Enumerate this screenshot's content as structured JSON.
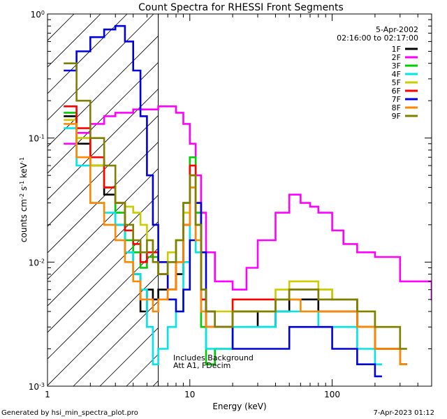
{
  "chart_data": {
    "type": "line",
    "title": "Count Spectra for RHESSI Front Segments",
    "xlabel": "Energy (keV)",
    "ylabel_main": "counts cm",
    "ylabel_exp1": "-2",
    "ylabel_mid": " s",
    "ylabel_exp2": "-1",
    "ylabel_mid2": " keV",
    "ylabel_exp3": "-1",
    "xscale": "log",
    "yscale": "log",
    "xlim": [
      1,
      500
    ],
    "ylim": [
      0.001,
      1
    ],
    "x_ticks": [
      {
        "value": 1,
        "label": "1"
      },
      {
        "value": 10,
        "label": "10"
      },
      {
        "value": 100,
        "label": "100"
      }
    ],
    "y_ticks": [
      {
        "value": 1,
        "base": "10",
        "exp": "0"
      },
      {
        "value": 0.1,
        "base": "10",
        "exp": "-1"
      },
      {
        "value": 0.01,
        "base": "10",
        "exp": "-2"
      },
      {
        "value": 0.001,
        "base": "10",
        "exp": "-3"
      }
    ],
    "date": "5-Apr-2002",
    "time_range": "02:16:00 to 02:17:00",
    "hatched_region_max_energy": 6,
    "annotations": [
      "Includes Background",
      "Att A1, FDecim"
    ],
    "footer_left": "Generated by hsi_min_spectra_plot.pro",
    "footer_right": "7-Apr-2023 01:12",
    "series": [
      {
        "name": "1F",
        "color": "#000000",
        "x": [
          1.3,
          1.6,
          2.0,
          2.5,
          3.0,
          3.5,
          4.0,
          4.5,
          5.0,
          5.5,
          6.0,
          7.0,
          8.0,
          9.0,
          10.0,
          11.0,
          12.0,
          13.0,
          15.0,
          20.0,
          30.0,
          40.0,
          50.0,
          60.0,
          80.0,
          100.0,
          150.0,
          200.0,
          300.0
        ],
        "y": [
          0.15,
          0.09,
          0.06,
          0.035,
          0.02,
          0.012,
          0.008,
          0.004,
          0.006,
          0.005,
          0.006,
          0.006,
          0.008,
          0.02,
          0.05,
          0.02,
          0.006,
          0.003,
          0.003,
          0.004,
          0.003,
          0.004,
          0.005,
          0.005,
          0.004,
          0.004,
          0.003,
          0.002,
          0.0015
        ]
      },
      {
        "name": "2F",
        "color": "#ff00ff",
        "x": [
          1.3,
          1.6,
          2.0,
          2.5,
          3.0,
          4.0,
          5.0,
          6.0,
          7.0,
          8.0,
          9.0,
          10.0,
          11.0,
          12.0,
          13.0,
          15.0,
          20.0,
          25.0,
          30.0,
          40.0,
          50.0,
          60.0,
          70.0,
          80.0,
          100.0,
          120.0,
          150.0,
          200.0,
          300.0,
          500.0
        ],
        "y": [
          0.09,
          0.11,
          0.13,
          0.15,
          0.16,
          0.17,
          0.17,
          0.18,
          0.18,
          0.16,
          0.13,
          0.09,
          0.05,
          0.025,
          0.012,
          0.007,
          0.006,
          0.009,
          0.015,
          0.025,
          0.035,
          0.03,
          0.028,
          0.025,
          0.018,
          0.014,
          0.012,
          0.011,
          0.007,
          0.005
        ]
      },
      {
        "name": "3F",
        "color": "#00cc00",
        "x": [
          1.3,
          1.6,
          2.0,
          2.5,
          3.0,
          3.5,
          4.0,
          4.5,
          5.0,
          6.0,
          7.0,
          8.0,
          9.0,
          10.0,
          11.0,
          12.0,
          13.0,
          15.0,
          20.0,
          30.0,
          40.0,
          50.0,
          60.0,
          80.0,
          100.0,
          150.0,
          200.0,
          300.0
        ],
        "y": [
          0.16,
          0.1,
          0.06,
          0.04,
          0.025,
          0.015,
          0.012,
          0.009,
          0.011,
          0.008,
          0.01,
          0.015,
          0.03,
          0.07,
          0.025,
          0.003,
          0.0015,
          0.002,
          0.004,
          0.004,
          0.005,
          0.006,
          0.006,
          0.006,
          0.005,
          0.003,
          0.002,
          0.0015
        ]
      },
      {
        "name": "4F",
        "color": "#00e5e5",
        "x": [
          1.3,
          1.6,
          2.0,
          2.5,
          3.0,
          3.5,
          4.0,
          4.5,
          5.0,
          5.5,
          6.0,
          7.0,
          8.0,
          9.0,
          10.0,
          11.0,
          12.0,
          13.0,
          15.0,
          20.0,
          30.0,
          40.0,
          50.0,
          60.0,
          80.0,
          100.0,
          150.0,
          200.0
        ],
        "y": [
          0.12,
          0.06,
          0.03,
          0.025,
          0.02,
          0.012,
          0.008,
          0.006,
          0.003,
          0.0015,
          0.002,
          0.003,
          0.004,
          0.01,
          0.04,
          0.012,
          0.004,
          0.002,
          0.002,
          0.003,
          0.003,
          0.004,
          0.004,
          0.004,
          0.003,
          0.003,
          0.002,
          0.0015
        ]
      },
      {
        "name": "5F",
        "color": "#cccc00",
        "x": [
          1.3,
          1.6,
          2.0,
          2.5,
          3.0,
          3.5,
          4.0,
          4.5,
          5.0,
          5.5,
          6.0,
          7.0,
          8.0,
          9.0,
          10.0,
          11.0,
          12.0,
          13.0,
          15.0,
          20.0,
          30.0,
          40.0,
          50.0,
          60.0,
          80.0,
          100.0,
          150.0,
          200.0,
          300.0
        ],
        "y": [
          0.14,
          0.1,
          0.06,
          0.04,
          0.03,
          0.028,
          0.025,
          0.02,
          0.015,
          0.012,
          0.01,
          0.012,
          0.015,
          0.025,
          0.05,
          0.02,
          0.006,
          0.004,
          0.004,
          0.005,
          0.005,
          0.006,
          0.007,
          0.007,
          0.006,
          0.005,
          0.004,
          0.003,
          0.002
        ]
      },
      {
        "name": "6F",
        "color": "#ff0000",
        "x": [
          1.3,
          1.6,
          2.0,
          2.5,
          3.0,
          3.5,
          4.0,
          4.5,
          5.0,
          6.0,
          7.0,
          8.0,
          9.0,
          10.0,
          11.0,
          12.0,
          13.0,
          15.0,
          20.0,
          30.0,
          40.0,
          50.0,
          60.0,
          80.0,
          100.0,
          150.0,
          200.0,
          300.0
        ],
        "y": [
          0.18,
          0.12,
          0.07,
          0.04,
          0.03,
          0.018,
          0.014,
          0.01,
          0.012,
          0.008,
          0.006,
          0.01,
          0.02,
          0.06,
          0.03,
          0.005,
          0.003,
          0.003,
          0.005,
          0.005,
          0.005,
          0.006,
          0.006,
          0.005,
          0.005,
          0.003,
          0.002,
          0.0015
        ]
      },
      {
        "name": "7F",
        "color": "#0000dd",
        "x": [
          1.3,
          1.6,
          2.0,
          2.5,
          3.0,
          3.5,
          4.0,
          4.5,
          5.0,
          5.5,
          6.0,
          7.0,
          8.0,
          9.0,
          10.0,
          11.0,
          12.0,
          13.0,
          15.0,
          20.0,
          30.0,
          40.0,
          50.0,
          60.0,
          80.0,
          100.0,
          150.0,
          200.0
        ],
        "y": [
          0.35,
          0.5,
          0.65,
          0.75,
          0.8,
          0.6,
          0.35,
          0.15,
          0.05,
          0.02,
          0.01,
          0.005,
          0.004,
          0.006,
          0.015,
          0.03,
          0.012,
          0.004,
          0.003,
          0.002,
          0.002,
          0.002,
          0.003,
          0.003,
          0.003,
          0.002,
          0.0015,
          0.0012
        ]
      },
      {
        "name": "8F",
        "color": "#ff8800",
        "x": [
          1.3,
          1.6,
          2.0,
          2.5,
          3.0,
          3.5,
          4.0,
          4.5,
          5.0,
          5.5,
          6.0,
          7.0,
          8.0,
          9.0,
          10.0,
          11.0,
          12.0,
          13.0,
          15.0,
          20.0,
          30.0,
          40.0,
          50.0,
          60.0,
          80.0,
          100.0,
          150.0,
          200.0,
          300.0
        ],
        "y": [
          0.13,
          0.07,
          0.03,
          0.02,
          0.015,
          0.01,
          0.007,
          0.005,
          0.005,
          0.004,
          0.005,
          0.006,
          0.01,
          0.02,
          0.04,
          0.015,
          0.004,
          0.003,
          0.003,
          0.004,
          0.004,
          0.005,
          0.005,
          0.004,
          0.004,
          0.004,
          0.003,
          0.002,
          0.0015
        ]
      },
      {
        "name": "9F",
        "color": "#808000",
        "x": [
          1.3,
          1.6,
          2.0,
          2.5,
          3.0,
          3.5,
          4.0,
          4.5,
          5.0,
          5.5,
          6.0,
          7.0,
          8.0,
          9.0,
          10.0,
          11.0,
          12.0,
          13.0,
          15.0,
          20.0,
          30.0,
          40.0,
          50.0,
          60.0,
          80.0,
          100.0,
          150.0,
          200.0,
          300.0
        ],
        "y": [
          0.4,
          0.2,
          0.1,
          0.06,
          0.03,
          0.02,
          0.015,
          0.012,
          0.015,
          0.01,
          0.008,
          0.01,
          0.015,
          0.03,
          0.05,
          0.02,
          0.006,
          0.004,
          0.003,
          0.004,
          0.004,
          0.005,
          0.006,
          0.006,
          0.005,
          0.005,
          0.004,
          0.003,
          0.002
        ]
      }
    ]
  }
}
